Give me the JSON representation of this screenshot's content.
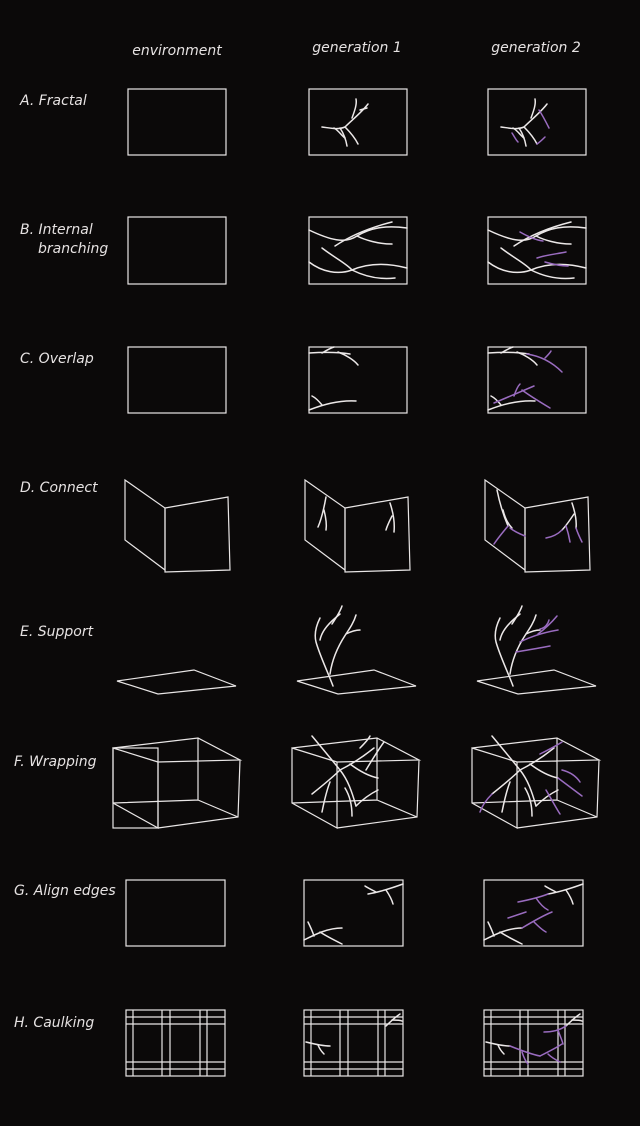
{
  "columns": [
    "environment",
    "generation 1",
    "generation 2"
  ],
  "rows": [
    {
      "id": "A",
      "label": "A. Fractal"
    },
    {
      "id": "B",
      "label_line1": "B. Internal",
      "label_line2": "branching"
    },
    {
      "id": "C",
      "label": "C. Overlap"
    },
    {
      "id": "D",
      "label": "D. Connect"
    },
    {
      "id": "E",
      "label": "E. Support"
    },
    {
      "id": "F",
      "label": "F. Wrapping"
    },
    {
      "id": "G",
      "label": "G. Align edges"
    },
    {
      "id": "H",
      "label": "H. Caulking"
    }
  ],
  "colors": {
    "background": "#0b0909",
    "line": "#ece8e8",
    "growth_generation_2": "#9a6cc0"
  }
}
